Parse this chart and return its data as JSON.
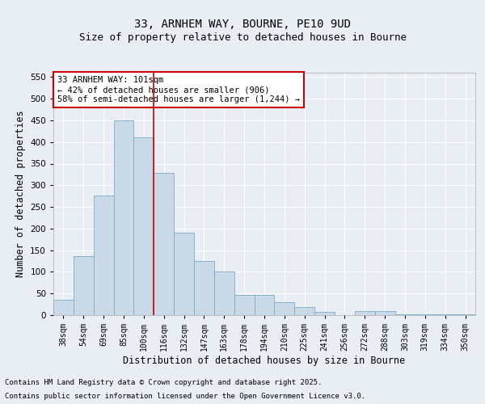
{
  "title1": "33, ARNHEM WAY, BOURNE, PE10 9UD",
  "title2": "Size of property relative to detached houses in Bourne",
  "xlabel": "Distribution of detached houses by size in Bourne",
  "ylabel": "Number of detached properties",
  "bar_labels": [
    "38sqm",
    "54sqm",
    "69sqm",
    "85sqm",
    "100sqm",
    "116sqm",
    "132sqm",
    "147sqm",
    "163sqm",
    "178sqm",
    "194sqm",
    "210sqm",
    "225sqm",
    "241sqm",
    "256sqm",
    "272sqm",
    "288sqm",
    "303sqm",
    "319sqm",
    "334sqm",
    "350sqm"
  ],
  "bar_values": [
    35,
    137,
    277,
    450,
    410,
    328,
    190,
    125,
    101,
    46,
    46,
    30,
    18,
    8,
    0,
    9,
    9,
    2,
    1,
    1,
    2
  ],
  "bar_color": "#c9d9e8",
  "bar_edge_color": "#7aaac8",
  "vline_pos": 4.5,
  "vline_color": "#cc0000",
  "ylim": [
    0,
    560
  ],
  "yticks": [
    0,
    50,
    100,
    150,
    200,
    250,
    300,
    350,
    400,
    450,
    500,
    550
  ],
  "annotation_text": "33 ARNHEM WAY: 101sqm\n← 42% of detached houses are smaller (906)\n58% of semi-detached houses are larger (1,244) →",
  "annotation_box_color": "#ffffff",
  "annotation_box_edge_color": "#cc0000",
  "footnote1": "Contains HM Land Registry data © Crown copyright and database right 2025.",
  "footnote2": "Contains public sector information licensed under the Open Government Licence v3.0.",
  "bg_color": "#e8eef4",
  "plot_bg_color": "#e8eef4",
  "grid_color": "#ffffff",
  "title_fontsize": 10,
  "subtitle_fontsize": 9,
  "tick_fontsize": 7,
  "label_fontsize": 8.5,
  "footnote_fontsize": 6.5,
  "annotation_fontsize": 7.5
}
